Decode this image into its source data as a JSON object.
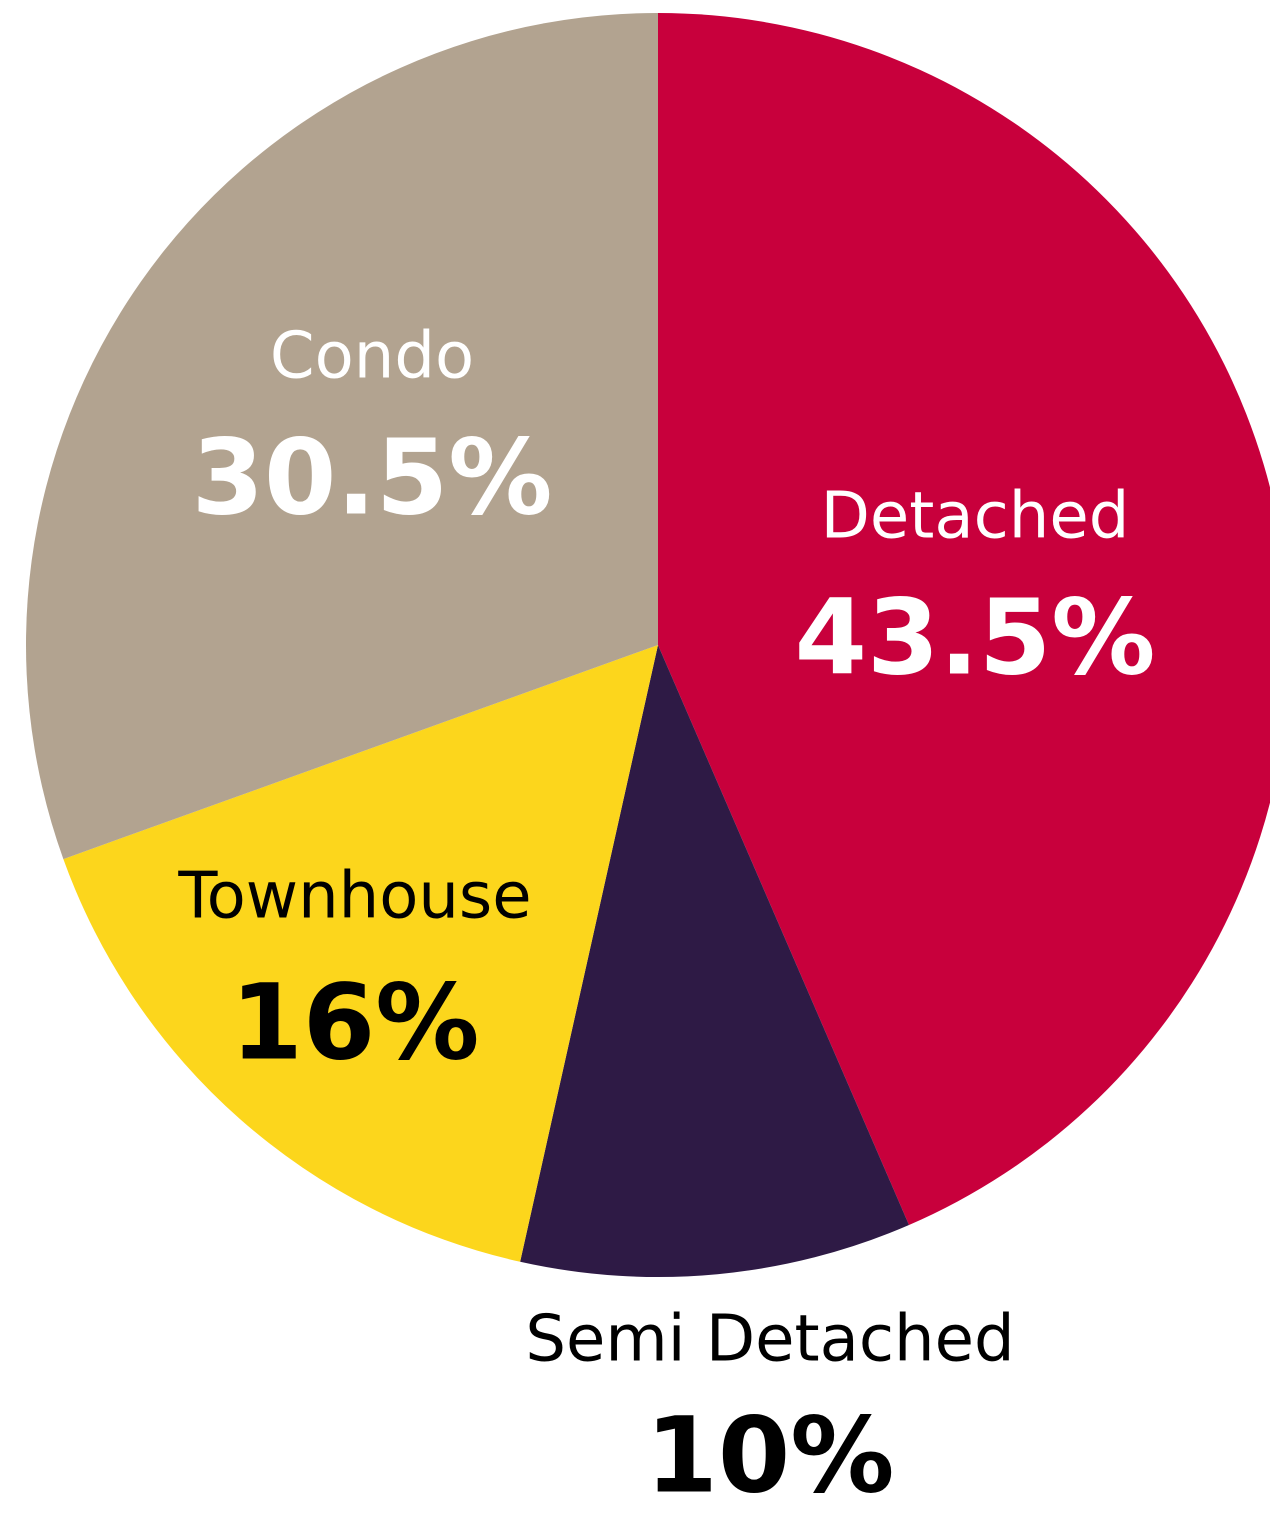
{
  "chart_data": {
    "type": "pie",
    "categories": [
      "Detached",
      "Semi Detached",
      "Townhouse",
      "Condo"
    ],
    "values": [
      43.5,
      10,
      16,
      30.5
    ],
    "value_labels": [
      "43.5%",
      "10%",
      "16%",
      "30.5%"
    ],
    "colors": [
      "#c8003c",
      "#2e1a45",
      "#fcd61c",
      "#b2a390"
    ]
  }
}
